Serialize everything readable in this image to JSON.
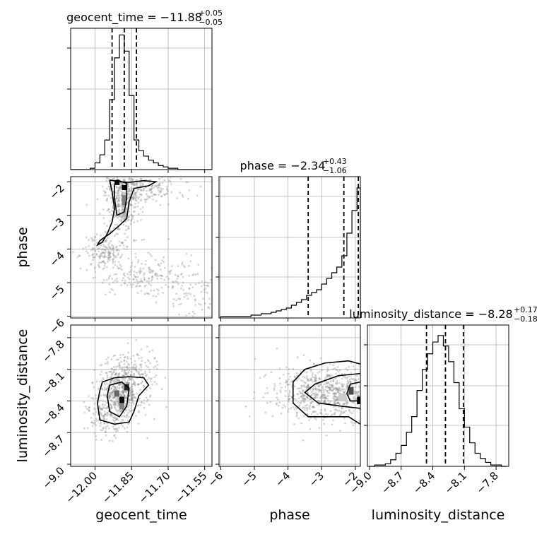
{
  "chart_data": {
    "type": "corner",
    "parameters": [
      "geocent_time",
      "phase",
      "luminosity_distance"
    ],
    "axes": {
      "geocent_time": {
        "range": [
          -12.1,
          -11.52
        ],
        "ticks": [
          -12.0,
          -11.85,
          -11.7,
          -11.55
        ],
        "tick_labels": [
          "−12.00",
          "−11.85",
          "−11.70",
          "−11.55"
        ]
      },
      "phase": {
        "range": [
          -6.05,
          -1.85
        ],
        "ticks": [
          -6,
          -5,
          -4,
          -3,
          -2
        ],
        "tick_labels": [
          "−6",
          "−5",
          "−4",
          "−3",
          "−2"
        ]
      },
      "luminosity_distance": {
        "range": [
          -9.02,
          -7.68
        ],
        "ticks": [
          -9.0,
          -8.7,
          -8.4,
          -8.1,
          -7.8
        ],
        "tick_labels": [
          "−9.0",
          "−8.7",
          "−8.4",
          "−8.1",
          "−7.8"
        ]
      }
    },
    "marginals": [
      {
        "parameter": "geocent_time",
        "title_main": "geocent_time = −11.88",
        "title_sup": "+0.05",
        "title_sub": "−0.05",
        "median": -11.88,
        "quantiles": [
          -11.93,
          -11.88,
          -11.83
        ],
        "bin_edges": [
          -12.1,
          -12.08,
          -12.06,
          -12.04,
          -12.02,
          -12.0,
          -11.98,
          -11.96,
          -11.94,
          -11.92,
          -11.9,
          -11.88,
          -11.86,
          -11.84,
          -11.82,
          -11.8,
          -11.78,
          -11.76,
          -11.74,
          -11.72,
          -11.7,
          -11.68,
          -11.66,
          -11.64,
          -11.62,
          -11.6,
          -11.58,
          -11.56,
          -11.54,
          -11.52
        ],
        "counts": [
          0,
          0,
          0,
          0,
          1,
          5,
          11,
          22,
          52,
          83,
          100,
          88,
          55,
          22,
          14,
          10,
          7,
          5,
          3,
          2,
          1,
          1,
          0,
          0,
          0,
          0,
          0,
          0,
          0
        ],
        "ymax": 105
      },
      {
        "parameter": "phase",
        "title_main": "phase = −2.34",
        "title_sup": "+0.43",
        "title_sub": "−1.06",
        "median": -2.34,
        "quantiles": [
          -3.4,
          -2.34,
          -1.91
        ],
        "bin_edges": [
          -6.0,
          -5.85,
          -5.7,
          -5.55,
          -5.4,
          -5.25,
          -5.1,
          -4.95,
          -4.8,
          -4.65,
          -4.5,
          -4.35,
          -4.2,
          -4.05,
          -3.9,
          -3.75,
          -3.6,
          -3.45,
          -3.3,
          -3.15,
          -3.0,
          -2.85,
          -2.7,
          -2.55,
          -2.4,
          -2.25,
          -2.1,
          -1.95,
          -1.85
        ],
        "counts": [
          1,
          1,
          1,
          1,
          1,
          1,
          2,
          2,
          3,
          3,
          4,
          5,
          6,
          7,
          9,
          11,
          13,
          16,
          18,
          20,
          24,
          28,
          32,
          36,
          44,
          60,
          76,
          92
        ],
        "ymax": 100
      },
      {
        "parameter": "luminosity_distance",
        "title_main": "luminosity_distance = −8.28",
        "title_sup": "+0.17",
        "title_sub": "−0.18",
        "median": -8.28,
        "quantiles": [
          -8.46,
          -8.28,
          -8.11
        ],
        "bin_edges": [
          -9.0,
          -8.95,
          -8.9,
          -8.85,
          -8.8,
          -8.75,
          -8.7,
          -8.65,
          -8.6,
          -8.55,
          -8.5,
          -8.45,
          -8.4,
          -8.35,
          -8.3,
          -8.25,
          -8.2,
          -8.15,
          -8.1,
          -8.05,
          -8.0,
          -7.95,
          -7.9,
          -7.85,
          -7.8,
          -7.75,
          -7.7
        ],
        "counts": [
          0,
          1,
          1,
          2,
          5,
          10,
          16,
          26,
          38,
          58,
          74,
          86,
          95,
          100,
          92,
          80,
          64,
          44,
          30,
          18,
          10,
          6,
          3,
          1,
          1,
          0
        ],
        "ymax": 108
      }
    ],
    "joint_panels": [
      {
        "x": "geocent_time",
        "y": "phase",
        "clusters": [
          {
            "cx": -11.89,
            "cy": -2.6,
            "sx": 0.035,
            "sy": 0.55,
            "n": 360
          },
          {
            "cx": -11.8,
            "cy": -2.2,
            "sx": 0.09,
            "sy": 0.25,
            "n": 220
          },
          {
            "cx": -11.96,
            "cy": -4.1,
            "sx": 0.04,
            "sy": 0.25,
            "n": 160
          },
          {
            "cx": -11.8,
            "cy": -4.8,
            "sx": 0.1,
            "sy": 0.3,
            "n": 200
          },
          {
            "cx": -11.6,
            "cy": -5.3,
            "sx": 0.06,
            "sy": 0.35,
            "n": 70
          }
        ],
        "contours": [
          [
            [
              -11.94,
              -1.95
            ],
            [
              -11.9,
              -2.0
            ],
            [
              -11.86,
              -2.02
            ],
            [
              -11.8,
              -1.97
            ],
            [
              -11.75,
              -2.0
            ],
            [
              -11.78,
              -2.12
            ],
            [
              -11.84,
              -2.2
            ],
            [
              -11.86,
              -2.6
            ],
            [
              -11.87,
              -3.1
            ],
            [
              -11.9,
              -3.3
            ],
            [
              -11.94,
              -3.55
            ],
            [
              -11.98,
              -3.75
            ],
            [
              -11.99,
              -3.88
            ],
            [
              -11.97,
              -3.8
            ],
            [
              -11.95,
              -3.55
            ],
            [
              -11.93,
              -3.2
            ],
            [
              -11.92,
              -2.8
            ],
            [
              -11.93,
              -2.3
            ],
            [
              -11.94,
              -1.95
            ]
          ],
          [
            [
              -11.91,
              -1.95
            ],
            [
              -11.87,
              -2.05
            ],
            [
              -11.87,
              -2.5
            ],
            [
              -11.88,
              -2.9
            ],
            [
              -11.91,
              -3.0
            ],
            [
              -11.92,
              -2.5
            ],
            [
              -11.92,
              -2.1
            ],
            [
              -11.91,
              -1.95
            ]
          ]
        ],
        "density_cells": [
          {
            "x": -11.92,
            "y": -1.95,
            "w": 0.02,
            "h": 0.15,
            "shade": 0.95
          },
          {
            "x": -11.89,
            "y": -2.1,
            "w": 0.02,
            "h": 0.15,
            "shade": 1.0
          },
          {
            "x": -11.89,
            "y": -2.4,
            "w": 0.02,
            "h": 0.3,
            "shade": 0.5
          },
          {
            "x": -11.89,
            "y": -2.8,
            "w": 0.02,
            "h": 0.25,
            "shade": 0.3
          }
        ]
      },
      {
        "x": "geocent_time",
        "y": "luminosity_distance",
        "clusters": [
          {
            "cx": -11.9,
            "cy": -8.33,
            "sx": 0.045,
            "sy": 0.14,
            "n": 520
          },
          {
            "cx": -11.84,
            "cy": -8.15,
            "sx": 0.05,
            "sy": 0.12,
            "n": 160
          },
          {
            "cx": -11.96,
            "cy": -8.55,
            "sx": 0.04,
            "sy": 0.1,
            "n": 120
          }
        ],
        "contours": [
          [
            [
              -11.97,
              -8.22
            ],
            [
              -11.92,
              -8.18
            ],
            [
              -11.86,
              -8.17
            ],
            [
              -11.8,
              -8.18
            ],
            [
              -11.78,
              -8.25
            ],
            [
              -11.82,
              -8.35
            ],
            [
              -11.84,
              -8.5
            ],
            [
              -11.86,
              -8.6
            ],
            [
              -11.92,
              -8.62
            ],
            [
              -11.98,
              -8.58
            ],
            [
              -11.99,
              -8.42
            ],
            [
              -11.98,
              -8.3
            ],
            [
              -11.97,
              -8.22
            ]
          ],
          [
            [
              -11.94,
              -8.25
            ],
            [
              -11.89,
              -8.22
            ],
            [
              -11.86,
              -8.28
            ],
            [
              -11.87,
              -8.45
            ],
            [
              -11.9,
              -8.55
            ],
            [
              -11.94,
              -8.5
            ],
            [
              -11.95,
              -8.35
            ],
            [
              -11.94,
              -8.25
            ]
          ]
        ],
        "density_cells": [
          {
            "x": -11.92,
            "y": -8.3,
            "w": 0.02,
            "h": 0.06,
            "shade": 0.6
          },
          {
            "x": -11.9,
            "y": -8.36,
            "w": 0.02,
            "h": 0.06,
            "shade": 0.95
          },
          {
            "x": -11.88,
            "y": -8.24,
            "w": 0.02,
            "h": 0.06,
            "shade": 0.85
          },
          {
            "x": -11.9,
            "y": -8.42,
            "w": 0.02,
            "h": 0.06,
            "shade": 0.5
          }
        ]
      },
      {
        "x": "phase",
        "y": "luminosity_distance",
        "clusters": [
          {
            "cx": -2.6,
            "cy": -8.33,
            "sx": 0.75,
            "sy": 0.12,
            "n": 620
          },
          {
            "cx": -3.6,
            "cy": -8.3,
            "sx": 0.65,
            "sy": 0.14,
            "n": 160
          }
        ],
        "contours": [
          [
            [
              -1.85,
              -8.05
            ],
            [
              -2.2,
              -8.02
            ],
            [
              -2.9,
              -8.04
            ],
            [
              -3.5,
              -8.1
            ],
            [
              -3.85,
              -8.22
            ],
            [
              -3.85,
              -8.42
            ],
            [
              -3.4,
              -8.55
            ],
            [
              -2.8,
              -8.55
            ],
            [
              -2.2,
              -8.55
            ],
            [
              -1.85,
              -8.62
            ]
          ],
          [
            [
              -1.85,
              -8.14
            ],
            [
              -2.5,
              -8.16
            ],
            [
              -3.2,
              -8.24
            ],
            [
              -3.5,
              -8.32
            ],
            [
              -3.1,
              -8.42
            ],
            [
              -2.4,
              -8.45
            ],
            [
              -1.85,
              -8.47
            ]
          ],
          [
            [
              -1.85,
              -8.22
            ],
            [
              -2.15,
              -8.24
            ],
            [
              -2.25,
              -8.33
            ],
            [
              -2.15,
              -8.4
            ],
            [
              -1.85,
              -8.4
            ]
          ]
        ],
        "density_cells": [
          {
            "x": -1.95,
            "y": -8.36,
            "w": 0.12,
            "h": 0.07,
            "shade": 1.0
          },
          {
            "x": -2.2,
            "y": -8.27,
            "w": 0.15,
            "h": 0.07,
            "shade": 0.7
          },
          {
            "x": -2.5,
            "y": -8.33,
            "w": 0.25,
            "h": 0.07,
            "shade": 0.2
          }
        ]
      }
    ]
  }
}
